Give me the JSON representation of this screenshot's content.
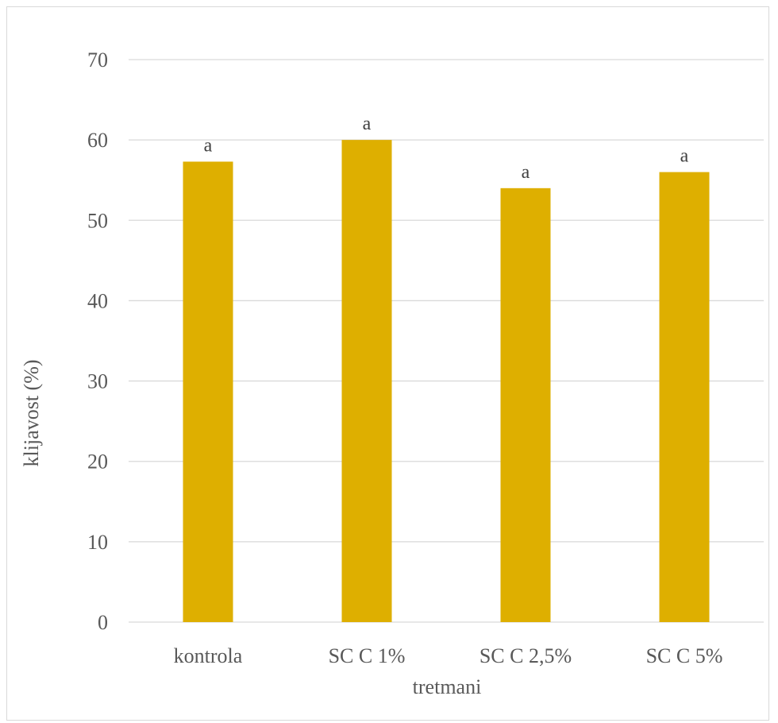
{
  "chart_data": {
    "type": "bar",
    "categories": [
      "kontrola",
      "SC C 1%",
      "SC C 2,5%",
      "SC C 5%"
    ],
    "values": [
      57.3,
      60.0,
      54.0,
      56.0
    ],
    "data_labels": [
      "a",
      "a",
      "a",
      "a"
    ],
    "title": "",
    "xlabel": "tretmani",
    "ylabel": "klijavost (%)",
    "ylim": [
      0,
      70
    ],
    "yticks": [
      0,
      10,
      20,
      30,
      40,
      50,
      60,
      70
    ],
    "grid": true,
    "legend": "none",
    "bar_color": "#DEAF00",
    "grid_color": "#d9d9d9"
  }
}
